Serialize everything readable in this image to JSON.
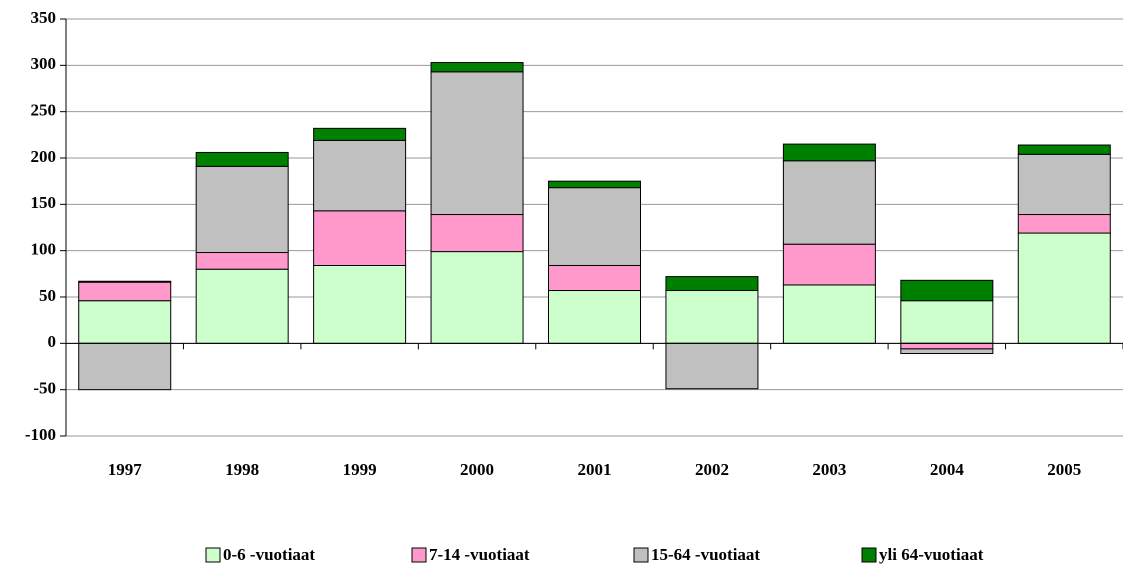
{
  "chart_data": {
    "type": "stacked_bar",
    "categories": [
      "1997",
      "1998",
      "1999",
      "2000",
      "2001",
      "2002",
      "2003",
      "2004",
      "2005"
    ],
    "series": [
      {
        "name": "0-6 -vuotiaat",
        "color": "#ccffcc",
        "values": [
          46,
          80,
          84,
          99,
          57,
          57,
          63,
          46,
          119
        ]
      },
      {
        "name": "7-14 -vuotiaat",
        "color": "#ff99cc",
        "values": [
          20,
          18,
          59,
          40,
          27,
          0,
          44,
          -6,
          20
        ]
      },
      {
        "name": "15-64 -vuotiaat",
        "color": "#c0c0c0",
        "values": [
          -50,
          93,
          76,
          154,
          84,
          -49,
          90,
          -5,
          65
        ]
      },
      {
        "name": "yli 64-vuotiaat",
        "color": "#008000",
        "values": [
          1,
          15,
          13,
          10,
          7,
          15,
          18,
          22,
          10
        ]
      }
    ],
    "ylim": [
      -100,
      350
    ],
    "yticks": [
      -100,
      -50,
      0,
      50,
      100,
      150,
      200,
      250,
      300,
      350
    ],
    "grid": true,
    "legend": "bottom"
  }
}
